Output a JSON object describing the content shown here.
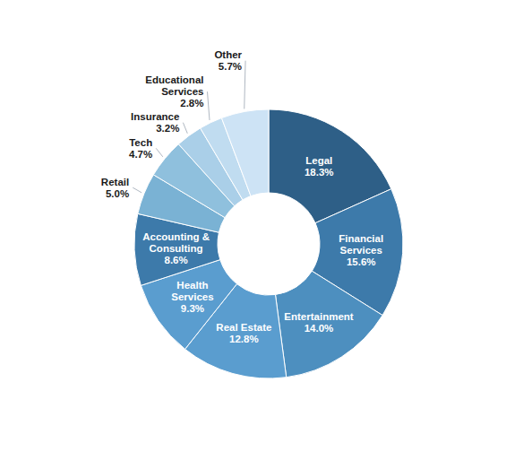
{
  "chart_data": {
    "type": "donut",
    "categories": [
      "Legal",
      "Financial\nServices",
      "Entertainment",
      "Real Estate",
      "Health\nServices",
      "Accounting &\nConsulting",
      "Retail",
      "Tech",
      "Insurance",
      "Educational\nServices",
      "Other"
    ],
    "values": [
      18.3,
      15.6,
      14.0,
      12.8,
      9.3,
      8.6,
      5.0,
      4.7,
      3.2,
      2.8,
      5.7
    ],
    "value_labels": [
      "18.3%",
      "15.6%",
      "14.0%",
      "12.8%",
      "9.3%",
      "8.6%",
      "5.0%",
      "4.7%",
      "3.2%",
      "2.8%",
      "5.7%"
    ],
    "colors": [
      "#2e5f87",
      "#3d7aaa",
      "#4d8fbf",
      "#5a9dcf",
      "#5a9dcf",
      "#3d7aaa",
      "#7ab2d4",
      "#8fc0dd",
      "#aacfe8",
      "#c0dcf0",
      "#cde3f5"
    ],
    "data_labels": true
  }
}
